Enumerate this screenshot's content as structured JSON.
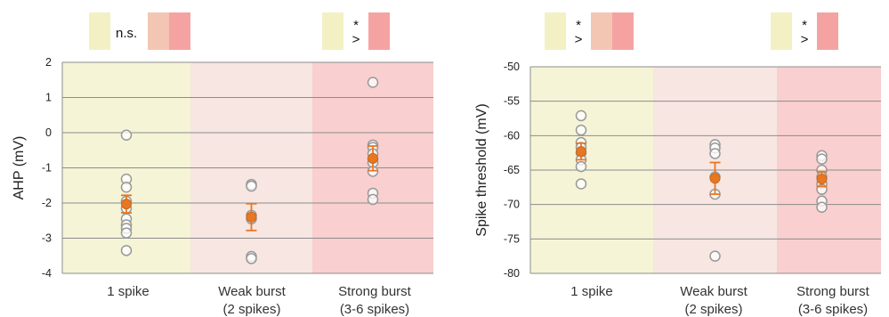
{
  "colors": {
    "cat1": "#f5f4d6",
    "cat2": "#f7e6e1",
    "cat3": "#f9cfcf",
    "swatch1": "#f3f1c4",
    "swatch2": "#f3c6b3",
    "swatch3": "#f5a3a2",
    "point_edge": "#999999",
    "mean": "#e87722"
  },
  "chart_data": [
    {
      "type": "scatter",
      "ylabel": "AHP (mV)",
      "ylim": [
        -4,
        2
      ],
      "yticks": [
        2,
        1,
        0,
        -1,
        -2,
        -3,
        -4
      ],
      "ytick_labels": [
        "2",
        "1",
        "0",
        "-1",
        "-2",
        "-3",
        "-4"
      ],
      "categories": [
        {
          "line1": "1 spike",
          "line2": ""
        },
        {
          "line1": "Weak burst",
          "line2": "(2 spikes)"
        },
        {
          "line1": "Strong burst",
          "line2": "(3-6 spikes)"
        }
      ],
      "points": [
        [
          -0.07,
          -1.32,
          -1.55,
          -1.95,
          -2.15,
          -2.45,
          -2.62,
          -2.72,
          -2.85,
          -3.35
        ],
        [
          -1.47,
          -1.52,
          -2.35,
          -2.45,
          -3.52,
          -3.58
        ],
        [
          1.43,
          -0.35,
          -0.42,
          -0.6,
          -0.75,
          -0.85,
          -1.1,
          -1.72,
          -1.9
        ]
      ],
      "means": [
        -2.03,
        -2.4,
        -0.73
      ],
      "errors": [
        0.25,
        0.38,
        0.35
      ],
      "significance": [
        {
          "label": "n.s.",
          "swatches": [
            "cat2",
            "cat3"
          ]
        },
        {
          "label": "*\n>",
          "swatches": [
            "cat3"
          ]
        }
      ]
    },
    {
      "type": "scatter",
      "ylabel": "Spike threshold (mV)",
      "ylim": [
        -80,
        -50
      ],
      "yticks": [
        -50,
        -55,
        -60,
        -65,
        -70,
        -75,
        -80
      ],
      "ytick_labels": [
        "-50",
        "-55",
        "-60",
        "-65",
        "-70",
        "-75",
        "-80"
      ],
      "categories": [
        {
          "line1": "1 spike",
          "line2": ""
        },
        {
          "line1": "Weak burst",
          "line2": "(2 spikes)"
        },
        {
          "line1": "Strong burst",
          "line2": "(3-6 spikes)"
        }
      ],
      "points": [
        [
          -57.1,
          -59.2,
          -61.0,
          -61.7,
          -62.5,
          -63.5,
          -64.5,
          -67.0
        ],
        [
          -61.3,
          -61.8,
          -62.6,
          -66.0,
          -68.5,
          -77.5
        ],
        [
          -62.9,
          -63.4,
          -65.0,
          -66.0,
          -67.0,
          -67.8,
          -69.5,
          -70.4
        ]
      ],
      "means": [
        -62.3,
        -66.2,
        -66.3
      ],
      "errors": [
        1.2,
        2.3,
        1.1
      ],
      "significance": [
        {
          "label": "*\n>",
          "swatches": [
            "cat2",
            "cat3"
          ]
        },
        {
          "label": "*\n>",
          "swatches": [
            "cat3"
          ]
        }
      ]
    }
  ]
}
